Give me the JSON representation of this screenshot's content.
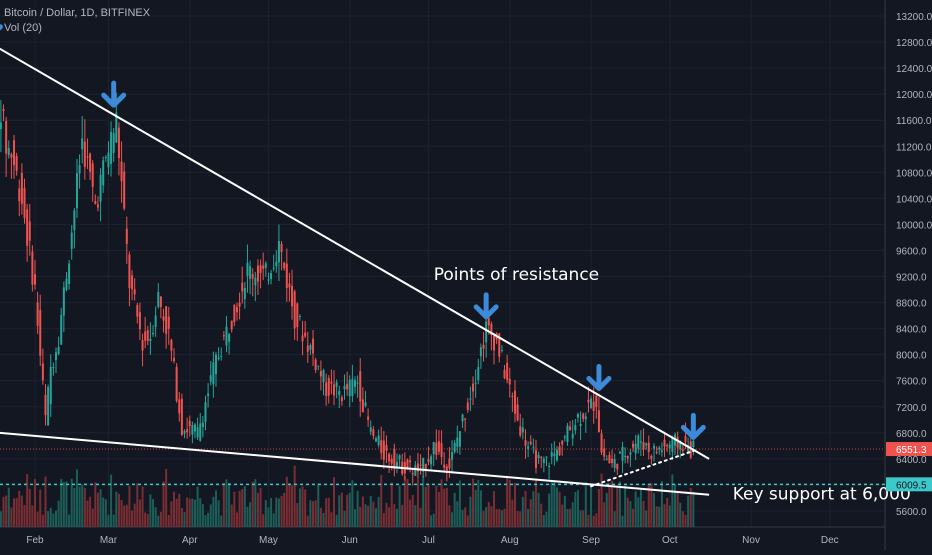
{
  "header": {
    "symbol": "Bitcoin / Dollar, 1D, BITFINEX",
    "volume_label": "Vol (20)"
  },
  "colors": {
    "background": "#131722",
    "grid": "#1e2230",
    "up": "#26a69a",
    "down": "#ef5350",
    "up_volume": "#1c5f58",
    "down_volume": "#7a2e33",
    "trendline": "#ffffff",
    "support_line": "#3cc9c9",
    "arrow": "#3c8ad8",
    "axis_text": "#b2b5be"
  },
  "chart_data": {
    "type": "candlestick",
    "x_ticks": [
      "Feb",
      "Mar",
      "Apr",
      "May",
      "Jun",
      "Jul",
      "Aug",
      "Sep",
      "Oct",
      "Nov",
      "Dec"
    ],
    "y_ticks": [
      13200,
      12800,
      12400,
      12000,
      11600,
      11200,
      10800,
      10400,
      10000,
      9600,
      9200,
      8800,
      8400,
      8000,
      7600,
      7200,
      6800,
      6400,
      6000,
      5600
    ],
    "y_range": [
      5400,
      13400
    ],
    "last_price": "6551.3",
    "support_price": "6009.5",
    "price_path": [
      {
        "date": "Jan 15",
        "price": 13300
      },
      {
        "date": "Jan 16",
        "price": 12800
      },
      {
        "date": "Jan 17",
        "price": 11300
      },
      {
        "date": "Jan 20",
        "price": 11800
      },
      {
        "date": "Jan 22",
        "price": 11200
      },
      {
        "date": "Jan 24",
        "price": 11100
      },
      {
        "date": "Jan 28",
        "price": 10400
      },
      {
        "date": "Feb 02",
        "price": 9000
      },
      {
        "date": "Feb 06",
        "price": 7000
      },
      {
        "date": "Feb 08",
        "price": 7800
      },
      {
        "date": "Feb 11",
        "price": 8300
      },
      {
        "date": "Feb 16",
        "price": 9900
      },
      {
        "date": "Feb 20",
        "price": 11300
      },
      {
        "date": "Feb 25",
        "price": 10300
      },
      {
        "date": "Mar 01",
        "price": 11000
      },
      {
        "date": "Mar 05",
        "price": 11600
      },
      {
        "date": "Mar 10",
        "price": 9100
      },
      {
        "date": "Mar 15",
        "price": 8200
      },
      {
        "date": "Mar 18",
        "price": 8300
      },
      {
        "date": "Mar 21",
        "price": 8900
      },
      {
        "date": "Mar 25",
        "price": 8300
      },
      {
        "date": "Mar 30",
        "price": 6900
      },
      {
        "date": "Apr 05",
        "price": 6800
      },
      {
        "date": "Apr 12",
        "price": 7900
      },
      {
        "date": "Apr 20",
        "price": 8800
      },
      {
        "date": "Apr 24",
        "price": 9300
      },
      {
        "date": "May 01",
        "price": 9200
      },
      {
        "date": "May 06",
        "price": 9700
      },
      {
        "date": "May 12",
        "price": 8600
      },
      {
        "date": "May 18",
        "price": 8100
      },
      {
        "date": "May 24",
        "price": 7500
      },
      {
        "date": "May 30",
        "price": 7400
      },
      {
        "date": "Jun 05",
        "price": 7600
      },
      {
        "date": "Jun 10",
        "price": 6800
      },
      {
        "date": "Jun 15",
        "price": 6500
      },
      {
        "date": "Jun 22",
        "price": 6300
      },
      {
        "date": "Jun 29",
        "price": 6200
      },
      {
        "date": "Jul 04",
        "price": 6600
      },
      {
        "date": "Jul 10",
        "price": 6300
      },
      {
        "date": "Jul 18",
        "price": 7400
      },
      {
        "date": "Jul 24",
        "price": 8400
      },
      {
        "date": "Jul 28",
        "price": 8200
      },
      {
        "date": "Aug 05",
        "price": 7000
      },
      {
        "date": "Aug 10",
        "price": 6500
      },
      {
        "date": "Aug 14",
        "price": 6300
      },
      {
        "date": "Aug 20",
        "price": 6500
      },
      {
        "date": "Aug 27",
        "price": 7000
      },
      {
        "date": "Sep 04",
        "price": 7300
      },
      {
        "date": "Sep 06",
        "price": 6500
      },
      {
        "date": "Sep 10",
        "price": 6300
      },
      {
        "date": "Sep 15",
        "price": 6500
      },
      {
        "date": "Sep 21",
        "price": 6700
      },
      {
        "date": "Sep 25",
        "price": 6500
      },
      {
        "date": "Oct 01",
        "price": 6600
      },
      {
        "date": "Oct 06",
        "price": 6650
      },
      {
        "date": "Oct 10",
        "price": 6550
      }
    ],
    "trendlines": [
      {
        "name": "resistance",
        "style": "solid",
        "from": {
          "date": "Jan 15",
          "price": 12780
        },
        "to": {
          "date": "Oct 16",
          "price": 6400
        }
      },
      {
        "name": "support",
        "style": "solid",
        "from": {
          "date": "Jan 10",
          "price": 6830
        },
        "to": {
          "date": "Oct 16",
          "price": 5850
        }
      },
      {
        "name": "rising-support",
        "style": "dotted",
        "from": {
          "date": "Sep 01",
          "price": 5980
        },
        "to": {
          "date": "Oct 12",
          "price": 6550
        }
      }
    ],
    "arrows": [
      {
        "date": "Jan 15",
        "price": 12850
      },
      {
        "date": "Mar 03",
        "price": 11800
      },
      {
        "date": "Jul 23",
        "price": 8550
      },
      {
        "date": "Sep 04",
        "price": 7450
      },
      {
        "date": "Oct 10",
        "price": 6700
      }
    ],
    "annotations": [
      {
        "name": "resistance-label",
        "text": "Points of resistance",
        "date": "Jul 03",
        "price": 9150
      },
      {
        "name": "support-label",
        "text": "Key support at 6,000",
        "date": "Oct 25",
        "price": 5780
      }
    ]
  }
}
